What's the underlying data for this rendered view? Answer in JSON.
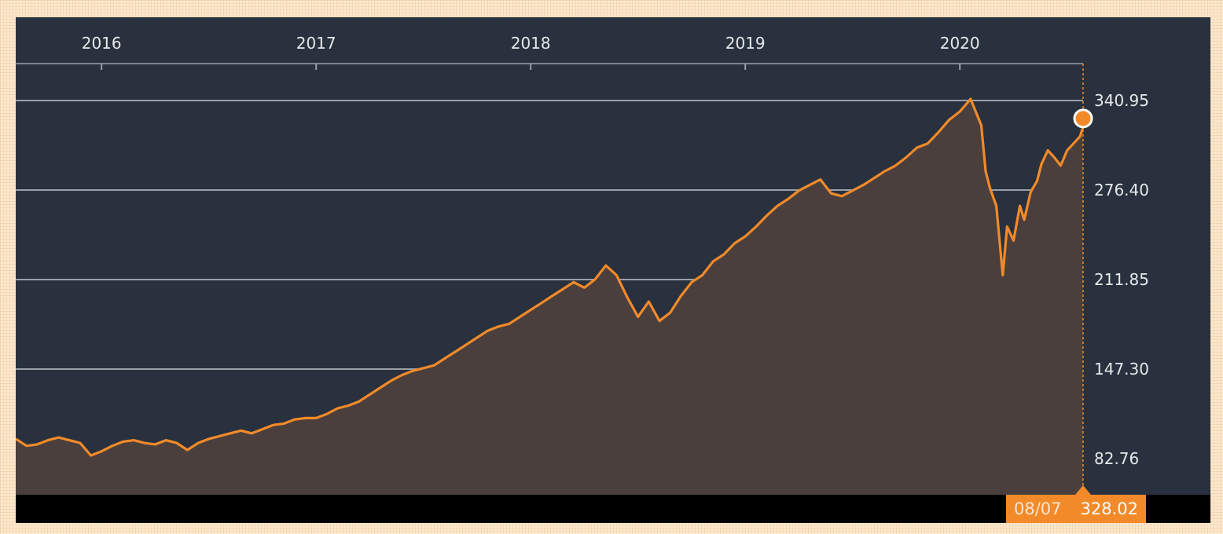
{
  "chart_data": {
    "type": "area",
    "x_labels": [
      "2016",
      "2017",
      "2018",
      "2019",
      "2020"
    ],
    "y_ticks": [
      82.76,
      147.3,
      211.85,
      276.4,
      340.95
    ],
    "y_tick_labels": [
      "82.76",
      "147.30",
      "211.85",
      "276.40",
      "340.95"
    ],
    "ylim": [
      57,
      370
    ],
    "xlim": [
      2015.6,
      2020.67
    ],
    "grid": true,
    "series": [
      {
        "x": [
          2015.6,
          2015.65,
          2015.7,
          2015.75,
          2015.8,
          2015.85,
          2015.9,
          2015.95,
          2016.0,
          2016.05,
          2016.1,
          2016.15,
          2016.2,
          2016.25,
          2016.3,
          2016.35,
          2016.4,
          2016.45,
          2016.5,
          2016.55,
          2016.6,
          2016.65,
          2016.7,
          2016.75,
          2016.8,
          2016.85,
          2016.9,
          2016.95,
          2017.0,
          2017.05,
          2017.1,
          2017.15,
          2017.2,
          2017.25,
          2017.3,
          2017.35,
          2017.4,
          2017.45,
          2017.5,
          2017.55,
          2017.6,
          2017.65,
          2017.7,
          2017.75,
          2017.8,
          2017.85,
          2017.9,
          2017.95,
          2018.0,
          2018.05,
          2018.1,
          2018.15,
          2018.2,
          2018.25,
          2018.3,
          2018.35,
          2018.4,
          2018.45,
          2018.5,
          2018.55,
          2018.6,
          2018.65,
          2018.7,
          2018.75,
          2018.8,
          2018.85,
          2018.9,
          2018.95,
          2019.0,
          2019.05,
          2019.1,
          2019.15,
          2019.2,
          2019.25,
          2019.3,
          2019.35,
          2019.4,
          2019.45,
          2019.5,
          2019.55,
          2019.6,
          2019.65,
          2019.7,
          2019.75,
          2019.8,
          2019.85,
          2019.9,
          2019.95,
          2020.0,
          2020.05,
          2020.1,
          2020.12,
          2020.14,
          2020.17,
          2020.2,
          2020.22,
          2020.25,
          2020.28,
          2020.3,
          2020.33,
          2020.36,
          2020.38,
          2020.41,
          2020.44,
          2020.47,
          2020.5,
          2020.53,
          2020.56,
          2020.59,
          2020.62,
          2020.67
        ],
        "y": [
          97,
          92,
          93,
          96,
          98,
          96,
          94,
          85,
          88,
          92,
          95,
          96,
          94,
          93,
          96,
          94,
          89,
          94,
          97,
          99,
          101,
          103,
          101,
          104,
          107,
          108,
          111,
          112,
          112,
          115,
          119,
          121,
          124,
          129,
          134,
          139,
          143,
          146,
          148,
          150,
          155,
          160,
          165,
          170,
          175,
          178,
          180,
          185,
          190,
          195,
          200,
          205,
          210,
          206,
          212,
          222,
          215,
          199,
          185,
          196,
          182,
          188,
          200,
          210,
          215,
          225,
          230,
          238,
          243,
          250,
          258,
          265,
          270,
          276,
          280,
          284,
          274,
          272,
          276,
          280,
          285,
          290,
          294,
          300,
          307,
          310,
          318,
          327,
          333,
          342,
          323,
          290,
          278,
          265,
          215,
          250,
          240,
          265,
          255,
          275,
          283,
          295,
          305,
          300,
          294,
          305,
          310,
          315,
          322,
          328,
          328.02
        ]
      }
    ],
    "current": {
      "date": "08/07",
      "value": "328.02"
    },
    "colors": {
      "line": "#f28a2a",
      "area": "#4a3f3c",
      "background": "#28313d",
      "grid": "#9aa0a8",
      "badge": "#f28a2a"
    }
  }
}
